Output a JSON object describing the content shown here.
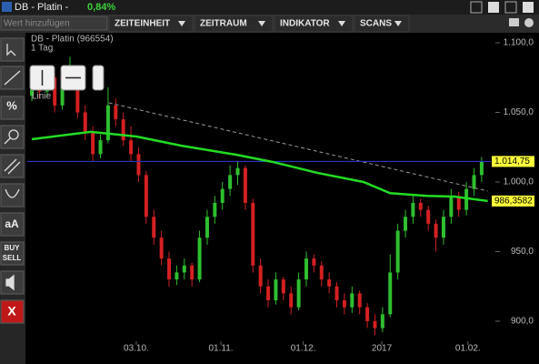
{
  "header": {
    "title": "DB - Platin -",
    "change": "0,84%"
  },
  "toolbar": {
    "search_placeholder": "Wert hinzufügen",
    "menus": [
      "ZEITEINHEIT",
      "ZEITRAUM",
      "INDIKATOR",
      "SCANS"
    ]
  },
  "side_tools": {
    "font": "aA",
    "trade": [
      "BUY",
      "SELL"
    ],
    "close": "X"
  },
  "drawing_popup": {
    "label": "Linie"
  },
  "chart_data": {
    "type": "candlestick",
    "title": "DB - Platin (966554)",
    "subtitle": "1 Tag",
    "up_color": "#2fbf2f",
    "down_color": "#d42020",
    "candles": [
      [
        1062,
        1078,
        1058,
        1070
      ],
      [
        1070,
        1074,
        1060,
        1065
      ],
      [
        1065,
        1082,
        1062,
        1075
      ],
      [
        1075,
        1078,
        1050,
        1055
      ],
      [
        1055,
        1080,
        1052,
        1075
      ],
      [
        1075,
        1090,
        1070,
        1080
      ],
      [
        1080,
        1083,
        1046,
        1050
      ],
      [
        1050,
        1055,
        1030,
        1035
      ],
      [
        1035,
        1040,
        1015,
        1020
      ],
      [
        1020,
        1034,
        1017,
        1030
      ],
      [
        1030,
        1068,
        1028,
        1055
      ],
      [
        1055,
        1060,
        1040,
        1045
      ],
      [
        1045,
        1050,
        1026,
        1030
      ],
      [
        1030,
        1040,
        1015,
        1020
      ],
      [
        1020,
        1025,
        1000,
        1005
      ],
      [
        1005,
        1008,
        970,
        975
      ],
      [
        975,
        980,
        955,
        960
      ],
      [
        960,
        965,
        940,
        945
      ],
      [
        945,
        950,
        925,
        930
      ],
      [
        930,
        940,
        926,
        935
      ],
      [
        935,
        945,
        930,
        940
      ],
      [
        940,
        942,
        925,
        930
      ],
      [
        930,
        965,
        928,
        960
      ],
      [
        960,
        980,
        955,
        975
      ],
      [
        975,
        990,
        970,
        985
      ],
      [
        985,
        1000,
        980,
        995
      ],
      [
        995,
        1012,
        990,
        1005
      ],
      [
        1005,
        1015,
        998,
        1010
      ],
      [
        1010,
        1012,
        980,
        985
      ],
      [
        985,
        988,
        935,
        940
      ],
      [
        940,
        945,
        920,
        925
      ],
      [
        925,
        930,
        910,
        915
      ],
      [
        915,
        935,
        912,
        930
      ],
      [
        930,
        932,
        915,
        920
      ],
      [
        920,
        925,
        905,
        910
      ],
      [
        910,
        935,
        908,
        930
      ],
      [
        930,
        950,
        925,
        945
      ],
      [
        945,
        948,
        935,
        940
      ],
      [
        940,
        943,
        925,
        930
      ],
      [
        930,
        935,
        920,
        925
      ],
      [
        925,
        928,
        910,
        915
      ],
      [
        915,
        920,
        905,
        910
      ],
      [
        910,
        925,
        906,
        920
      ],
      [
        920,
        922,
        905,
        910
      ],
      [
        910,
        913,
        895,
        900
      ],
      [
        900,
        905,
        890,
        895
      ],
      [
        895,
        910,
        892,
        905
      ],
      [
        905,
        948,
        903,
        935
      ],
      [
        935,
        970,
        930,
        965
      ],
      [
        965,
        980,
        960,
        975
      ],
      [
        975,
        990,
        970,
        985
      ],
      [
        985,
        988,
        975,
        980
      ],
      [
        980,
        983,
        965,
        970
      ],
      [
        970,
        973,
        950,
        960
      ],
      [
        960,
        980,
        955,
        975
      ],
      [
        975,
        995,
        970,
        990
      ],
      [
        990,
        993,
        975,
        980
      ],
      [
        980,
        1000,
        976,
        995
      ],
      [
        995,
        1010,
        990,
        1005
      ],
      [
        1005,
        1018,
        1000,
        1015
      ]
    ],
    "xlim": [
      -0.6,
      60.8
    ],
    "xticks": [
      {
        "value": 13.7,
        "label": "03.10."
      },
      {
        "value": 24.8,
        "label": "01.11."
      },
      {
        "value": 35.6,
        "label": "01.12."
      },
      {
        "value": 45.9,
        "label": "2017"
      },
      {
        "value": 57.2,
        "label": "01.02."
      }
    ],
    "ylim": [
      885.6,
      1107.2
    ],
    "yticks": [
      {
        "value": 900,
        "label": "900,0"
      },
      {
        "value": 950,
        "label": "950,0"
      },
      {
        "value": 1000,
        "label": "1.000,0"
      },
      {
        "value": 1050,
        "label": "1.050,0"
      },
      {
        "value": 1100,
        "label": "1.100,0"
      }
    ],
    "moving_average": {
      "color": "#22dd22",
      "x": [
        0,
        7.7,
        13.7,
        19.7,
        26.8,
        31.6,
        37.5,
        43.5,
        47,
        51.8,
        55.4,
        59.8
      ],
      "values": [
        1030.7,
        1036,
        1032.7,
        1026,
        1019.6,
        1014.4,
        1006.5,
        1000,
        992,
        990,
        989.5,
        986.3582
      ],
      "current_value": 986.3582,
      "current_label": "986,3582"
    },
    "level": {
      "color": "#2535c8",
      "value": 1014.75,
      "label": "1.014,75"
    },
    "trendline": {
      "color": "#9a9a9a",
      "x": [
        10.1,
        59.8
      ],
      "values": [
        1056.9,
        993.5
      ]
    }
  }
}
